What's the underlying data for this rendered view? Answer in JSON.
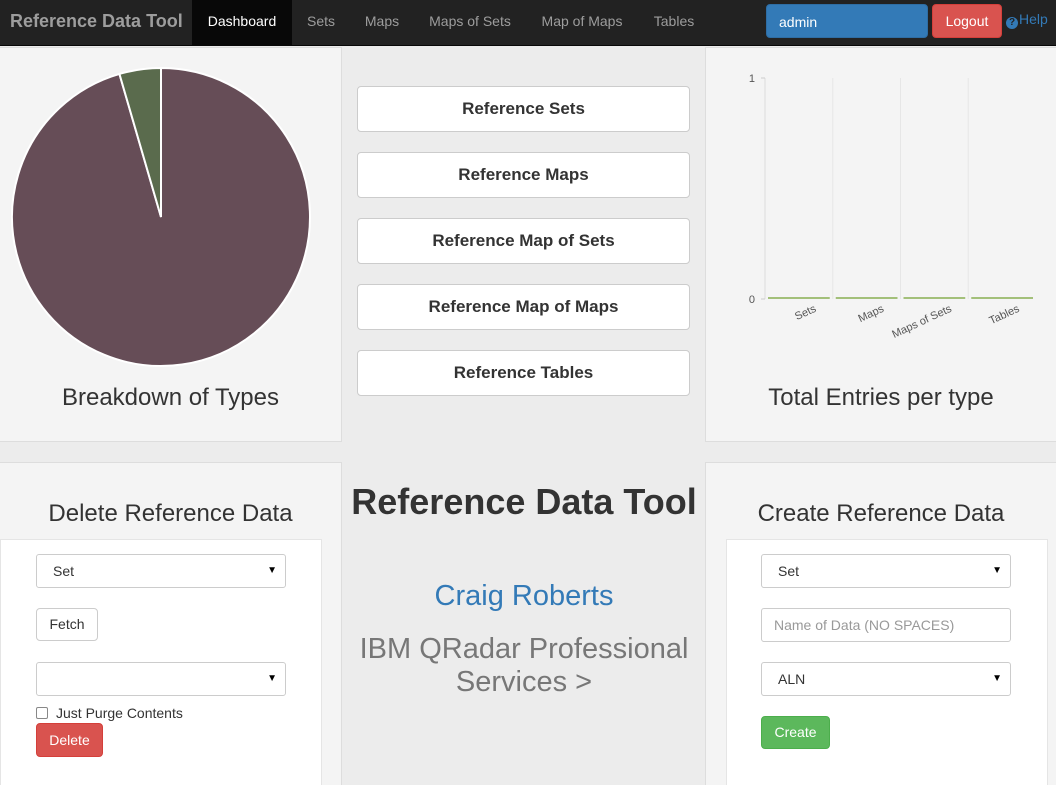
{
  "navbar": {
    "brand": "Reference Data Tool",
    "items": [
      {
        "label": "Dashboard",
        "active": true
      },
      {
        "label": "Sets",
        "active": false
      },
      {
        "label": "Maps",
        "active": false
      },
      {
        "label": "Maps of Sets",
        "active": false
      },
      {
        "label": "Map of Maps",
        "active": false
      },
      {
        "label": "Tables",
        "active": false
      }
    ],
    "user": "admin",
    "logout_label": "Logout",
    "help_label": "Help"
  },
  "pie_panel": {
    "title": "Breakdown of Types",
    "chart_data": {
      "type": "pie",
      "slices": [
        {
          "label": "",
          "value": 95.5,
          "color": "#664d57"
        },
        {
          "label": "",
          "value": 4.5,
          "color": "#5a6b4d"
        }
      ]
    }
  },
  "reference_buttons": [
    "Reference Sets",
    "Reference Maps",
    "Reference Map of Sets",
    "Reference Map of Maps",
    "Reference Tables"
  ],
  "bar_panel": {
    "title": "Total Entries per type",
    "chart_data": {
      "type": "bar",
      "categories": [
        "Sets",
        "Maps",
        "Maps of Sets",
        "Tables"
      ],
      "values": [
        0,
        0,
        0,
        0
      ],
      "ylim": [
        0,
        1
      ],
      "yticks": [
        "0",
        "1"
      ],
      "bar_color": "#a3c07a",
      "grid": true
    }
  },
  "delete_panel": {
    "title": "Delete Reference Data",
    "type_select": "Set",
    "fetch_label": "Fetch",
    "item_select": "",
    "purge_label": "Just Purge Contents",
    "delete_label": "Delete"
  },
  "center": {
    "title": "Reference Data Tool",
    "author": "Craig Roberts",
    "company": "IBM QRadar Professional Services >"
  },
  "create_panel": {
    "title": "Create Reference Data",
    "type_select": "Set",
    "name_placeholder": "Name of Data (NO SPACES)",
    "element_type_select": "ALN",
    "create_label": "Create"
  },
  "colors": {
    "navbar_bg": "#222222",
    "primary": "#337ab7",
    "danger": "#d9534f",
    "success": "#5cb85c"
  }
}
